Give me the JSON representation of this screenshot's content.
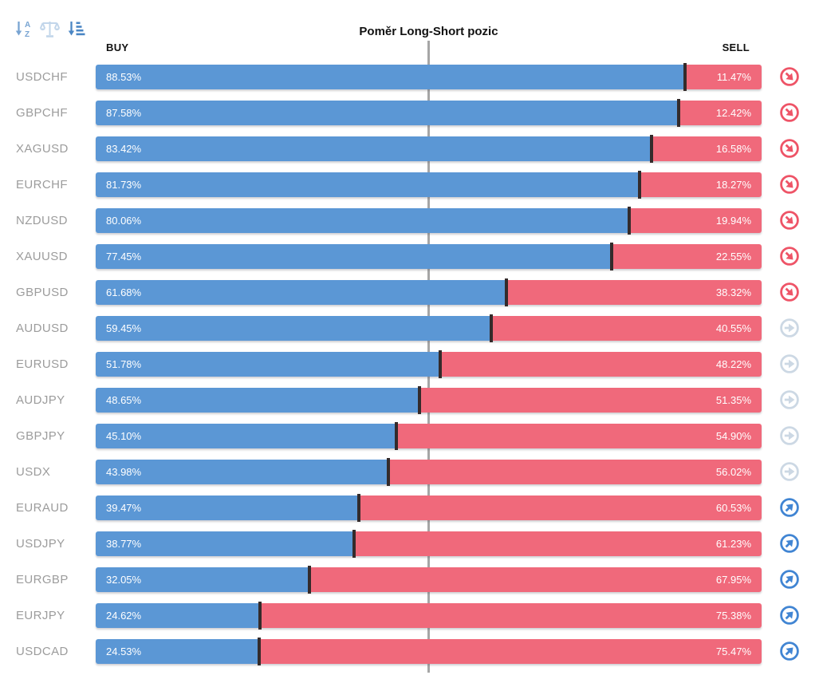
{
  "title": "Poměr Long-Short pozic",
  "header": {
    "buy": "BUY",
    "sell": "SELL"
  },
  "toolbar": {
    "sort_alpha_icon": "sort-alphabetical",
    "balance_icon": "balance-scale",
    "sort_amount_icon": "sort-by-value"
  },
  "colors": {
    "buy_bar": "#5b97d5",
    "sell_bar": "#f0697b",
    "bar_separator": "#342b2b",
    "pair_label": "#9c9c9c",
    "center_line": "#a6a6a6",
    "trend_down_icon": "#ee5467",
    "trend_flat_icon": "#ccd8e4",
    "trend_up_icon": "#4185d3"
  },
  "rows": [
    {
      "pair": "USDCHF",
      "buy": 88.53,
      "sell": 11.47,
      "buy_label": "88.53%",
      "sell_label": "11.47%",
      "trend": "down"
    },
    {
      "pair": "GBPCHF",
      "buy": 87.58,
      "sell": 12.42,
      "buy_label": "87.58%",
      "sell_label": "12.42%",
      "trend": "down"
    },
    {
      "pair": "XAGUSD",
      "buy": 83.42,
      "sell": 16.58,
      "buy_label": "83.42%",
      "sell_label": "16.58%",
      "trend": "down"
    },
    {
      "pair": "EURCHF",
      "buy": 81.73,
      "sell": 18.27,
      "buy_label": "81.73%",
      "sell_label": "18.27%",
      "trend": "down"
    },
    {
      "pair": "NZDUSD",
      "buy": 80.06,
      "sell": 19.94,
      "buy_label": "80.06%",
      "sell_label": "19.94%",
      "trend": "down"
    },
    {
      "pair": "XAUUSD",
      "buy": 77.45,
      "sell": 22.55,
      "buy_label": "77.45%",
      "sell_label": "22.55%",
      "trend": "down"
    },
    {
      "pair": "GBPUSD",
      "buy": 61.68,
      "sell": 38.32,
      "buy_label": "61.68%",
      "sell_label": "38.32%",
      "trend": "down"
    },
    {
      "pair": "AUDUSD",
      "buy": 59.45,
      "sell": 40.55,
      "buy_label": "59.45%",
      "sell_label": "40.55%",
      "trend": "flat"
    },
    {
      "pair": "EURUSD",
      "buy": 51.78,
      "sell": 48.22,
      "buy_label": "51.78%",
      "sell_label": "48.22%",
      "trend": "flat"
    },
    {
      "pair": "AUDJPY",
      "buy": 48.65,
      "sell": 51.35,
      "buy_label": "48.65%",
      "sell_label": "51.35%",
      "trend": "flat"
    },
    {
      "pair": "GBPJPY",
      "buy": 45.1,
      "sell": 54.9,
      "buy_label": "45.10%",
      "sell_label": "54.90%",
      "trend": "flat"
    },
    {
      "pair": "USDX",
      "buy": 43.98,
      "sell": 56.02,
      "buy_label": "43.98%",
      "sell_label": "56.02%",
      "trend": "flat"
    },
    {
      "pair": "EURAUD",
      "buy": 39.47,
      "sell": 60.53,
      "buy_label": "39.47%",
      "sell_label": "60.53%",
      "trend": "up"
    },
    {
      "pair": "USDJPY",
      "buy": 38.77,
      "sell": 61.23,
      "buy_label": "38.77%",
      "sell_label": "61.23%",
      "trend": "up"
    },
    {
      "pair": "EURGBP",
      "buy": 32.05,
      "sell": 67.95,
      "buy_label": "32.05%",
      "sell_label": "67.95%",
      "trend": "up"
    },
    {
      "pair": "EURJPY",
      "buy": 24.62,
      "sell": 75.38,
      "buy_label": "24.62%",
      "sell_label": "75.38%",
      "trend": "up"
    },
    {
      "pair": "USDCAD",
      "buy": 24.53,
      "sell": 75.47,
      "buy_label": "24.53%",
      "sell_label": "75.47%",
      "trend": "up"
    }
  ],
  "chart_data": {
    "type": "bar",
    "orientation": "horizontal",
    "stacked": true,
    "title": "Poměr Long-Short pozic",
    "xlabel": "",
    "ylabel": "",
    "xlim": [
      0,
      100
    ],
    "centerline_value": 50,
    "legend_position": "top (BUY left, SELL right)",
    "grid": false,
    "categories": [
      "USDCHF",
      "GBPCHF",
      "XAGUSD",
      "EURCHF",
      "NZDUSD",
      "XAUUSD",
      "GBPUSD",
      "AUDUSD",
      "EURUSD",
      "AUDJPY",
      "GBPJPY",
      "USDX",
      "EURAUD",
      "USDJPY",
      "EURGBP",
      "EURJPY",
      "USDCAD"
    ],
    "series": [
      {
        "name": "BUY",
        "color": "#5b97d5",
        "values": [
          88.53,
          87.58,
          83.42,
          81.73,
          80.06,
          77.45,
          61.68,
          59.45,
          51.78,
          48.65,
          45.1,
          43.98,
          39.47,
          38.77,
          32.05,
          24.62,
          24.53
        ]
      },
      {
        "name": "SELL",
        "color": "#f0697b",
        "values": [
          11.47,
          12.42,
          16.58,
          18.27,
          19.94,
          22.55,
          38.32,
          40.55,
          48.22,
          51.35,
          54.9,
          56.02,
          60.53,
          61.23,
          67.95,
          75.38,
          75.47
        ]
      }
    ],
    "row_trend_indicators": [
      "down",
      "down",
      "down",
      "down",
      "down",
      "down",
      "down",
      "flat",
      "flat",
      "flat",
      "flat",
      "flat",
      "up",
      "up",
      "up",
      "up",
      "up"
    ]
  }
}
